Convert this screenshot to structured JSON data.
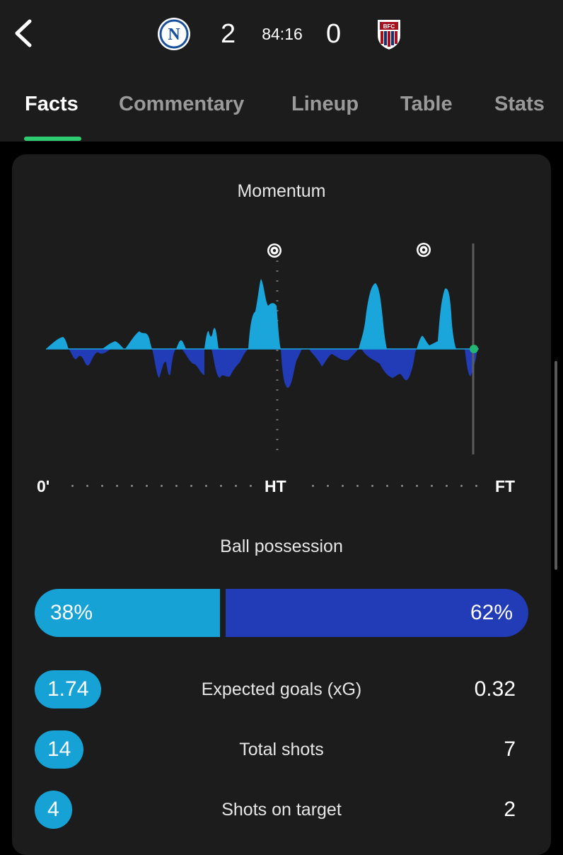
{
  "header": {
    "back_icon": "chevron-left-icon",
    "home_team": {
      "crest_icon": "napoli-crest",
      "crest_letter": "N",
      "score": "2"
    },
    "away_team": {
      "crest_icon": "bologna-crest",
      "crest_text": "BFC",
      "score": "0"
    },
    "clock": "84:16"
  },
  "tabs": [
    {
      "label": "Facts",
      "active": true
    },
    {
      "label": "Commentary",
      "active": false
    },
    {
      "label": "Lineup",
      "active": false
    },
    {
      "label": "Table",
      "active": false
    },
    {
      "label": "Stats",
      "active": false
    }
  ],
  "momentum": {
    "title": "Momentum",
    "axis": {
      "start": "0'",
      "half": "HT",
      "end": "FT"
    },
    "goal_icons": [
      "soccer-ball-icon",
      "soccer-ball-icon"
    ],
    "colors": {
      "home": "#1aa6db",
      "away": "#223bb7",
      "live": "#22b573"
    }
  },
  "possession": {
    "title": "Ball possession",
    "home_pct": 38,
    "away_pct": 62,
    "home_label": "38%",
    "away_label": "62%"
  },
  "stats": [
    {
      "label": "Expected goals (xG)",
      "home": "1.74",
      "away": "0.32"
    },
    {
      "label": "Total shots",
      "home": "14",
      "away": "7"
    },
    {
      "label": "Shots on target",
      "home": "4",
      "away": "2"
    }
  ]
}
